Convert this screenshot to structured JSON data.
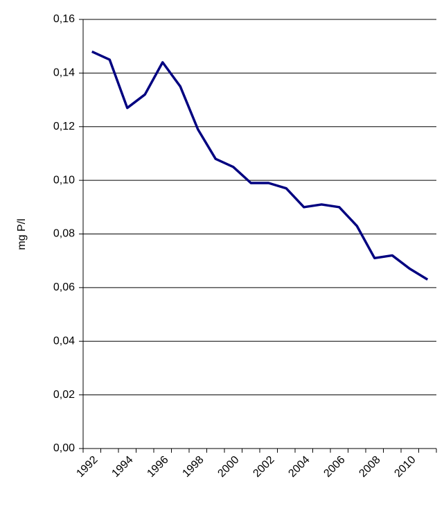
{
  "chart_data": {
    "type": "line",
    "y_label": "mg P/l",
    "categories": [
      "1992",
      null,
      "1994",
      null,
      "1996",
      null,
      "1998",
      null,
      "2000",
      null,
      "2002",
      null,
      "2004",
      null,
      "2006",
      null,
      "2008",
      null,
      "2010",
      null
    ],
    "series": [
      {
        "name": null,
        "color": "#000080",
        "values": [
          0.148,
          0.145,
          0.127,
          0.132,
          0.144,
          0.135,
          0.119,
          0.108,
          0.105,
          0.099,
          0.099,
          0.097,
          0.09,
          0.091,
          0.09,
          0.083,
          0.071,
          0.072,
          0.067,
          0.063
        ]
      }
    ],
    "ylim": [
      0,
      0.16
    ],
    "yticks": [
      {
        "value": 0,
        "label": "0,00"
      },
      {
        "value": 0.02,
        "label": "0,02"
      },
      {
        "value": 0.04,
        "label": "0,04"
      },
      {
        "value": 0.06,
        "label": "0,06"
      },
      {
        "value": 0.08,
        "label": "0,08"
      },
      {
        "value": 0.1,
        "label": "0,10"
      },
      {
        "value": 0.12,
        "label": "0,12"
      },
      {
        "value": 0.14,
        "label": "0,14"
      },
      {
        "value": 0.16,
        "label": "0,16"
      }
    ],
    "grid": true
  }
}
